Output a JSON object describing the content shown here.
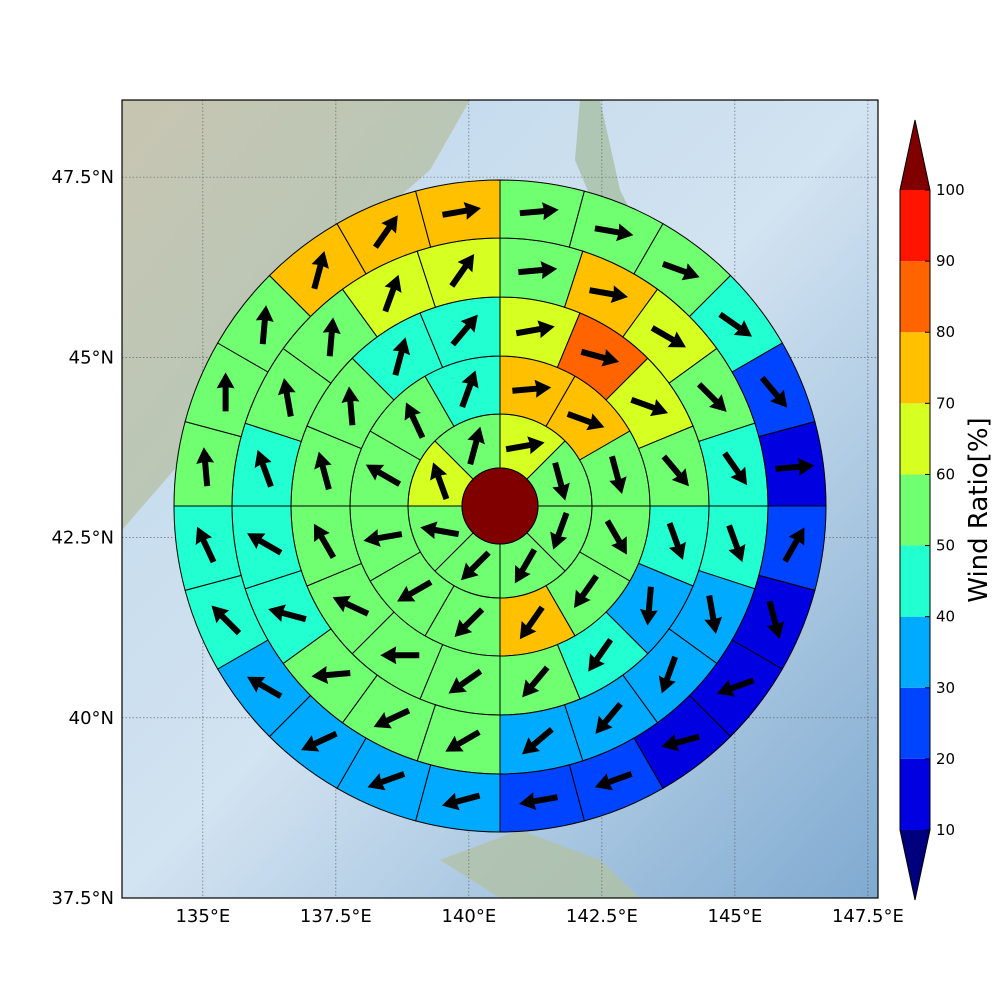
{
  "chart_data": {
    "type": "polar-sector-map",
    "colorbar_label": "Wind Ratio[%]",
    "xlim": [
      133.48,
      147.69
    ],
    "ylim": [
      37.5,
      48.57
    ],
    "xticks": [
      {
        "value": 135,
        "label": "135°E"
      },
      {
        "value": 137.5,
        "label": "137.5°E"
      },
      {
        "value": 140,
        "label": "140°E"
      },
      {
        "value": 142.5,
        "label": "142.5°E"
      },
      {
        "value": 145,
        "label": "145°E"
      },
      {
        "value": 147.5,
        "label": "147.5°E"
      }
    ],
    "yticks": [
      {
        "value": 37.5,
        "label": "37.5°N"
      },
      {
        "value": 40,
        "label": "40°N"
      },
      {
        "value": 42.5,
        "label": "42.5°N"
      },
      {
        "value": 45,
        "label": "45°N"
      },
      {
        "value": 47.5,
        "label": "47.5°N"
      }
    ],
    "grid": true,
    "levels": [
      10,
      20,
      30,
      40,
      50,
      60,
      70,
      80,
      90,
      100
    ],
    "colors": [
      "#00007f",
      "#0000e0",
      "#0044ff",
      "#00aaff",
      "#22ffd0",
      "#70ff70",
      "#d6ff22",
      "#ffc000",
      "#ff6400",
      "#ff1400",
      "#800000"
    ],
    "center_value": 100,
    "rings": [
      {
        "values": [
          65,
          55,
          55,
          55,
          52,
          55,
          65,
          55
        ],
        "directions": [
          80,
          165,
          200,
          210,
          225,
          280,
          340,
          15
        ]
      },
      {
        "values": [
          72,
          72,
          55,
          55,
          55,
          72,
          55,
          55,
          55,
          55,
          55,
          45
        ],
        "directions": [
          85,
          110,
          165,
          150,
          215,
          215,
          225,
          240,
          260,
          300,
          335,
          20
        ]
      },
      {
        "values": [
          65,
          85,
          62,
          55,
          45,
          35,
          45,
          52,
          55,
          55,
          55,
          55,
          55,
          55,
          45,
          45
        ],
        "directions": [
          80,
          105,
          110,
          140,
          160,
          185,
          215,
          220,
          235,
          270,
          295,
          330,
          345,
          355,
          15,
          40
        ]
      },
      {
        "values": [
          55,
          72,
          62,
          55,
          45,
          45,
          35,
          35,
          35,
          35,
          52,
          55,
          52,
          45,
          45,
          45,
          55,
          55,
          62,
          65
        ],
        "directions": [
          85,
          100,
          120,
          135,
          145,
          160,
          170,
          200,
          220,
          230,
          240,
          245,
          265,
          285,
          300,
          340,
          350,
          5,
          20,
          35
        ]
      },
      {
        "values": [
          55,
          55,
          55,
          45,
          25,
          15,
          25,
          12,
          12,
          15,
          25,
          25,
          35,
          35,
          35,
          35,
          45,
          45,
          55,
          55,
          55,
          72,
          72,
          72
        ],
        "directions": [
          85,
          100,
          110,
          125,
          140,
          85,
          30,
          165,
          250,
          255,
          250,
          260,
          255,
          250,
          245,
          300,
          315,
          335,
          355,
          0,
          5,
          15,
          35,
          80
        ]
      }
    ]
  }
}
